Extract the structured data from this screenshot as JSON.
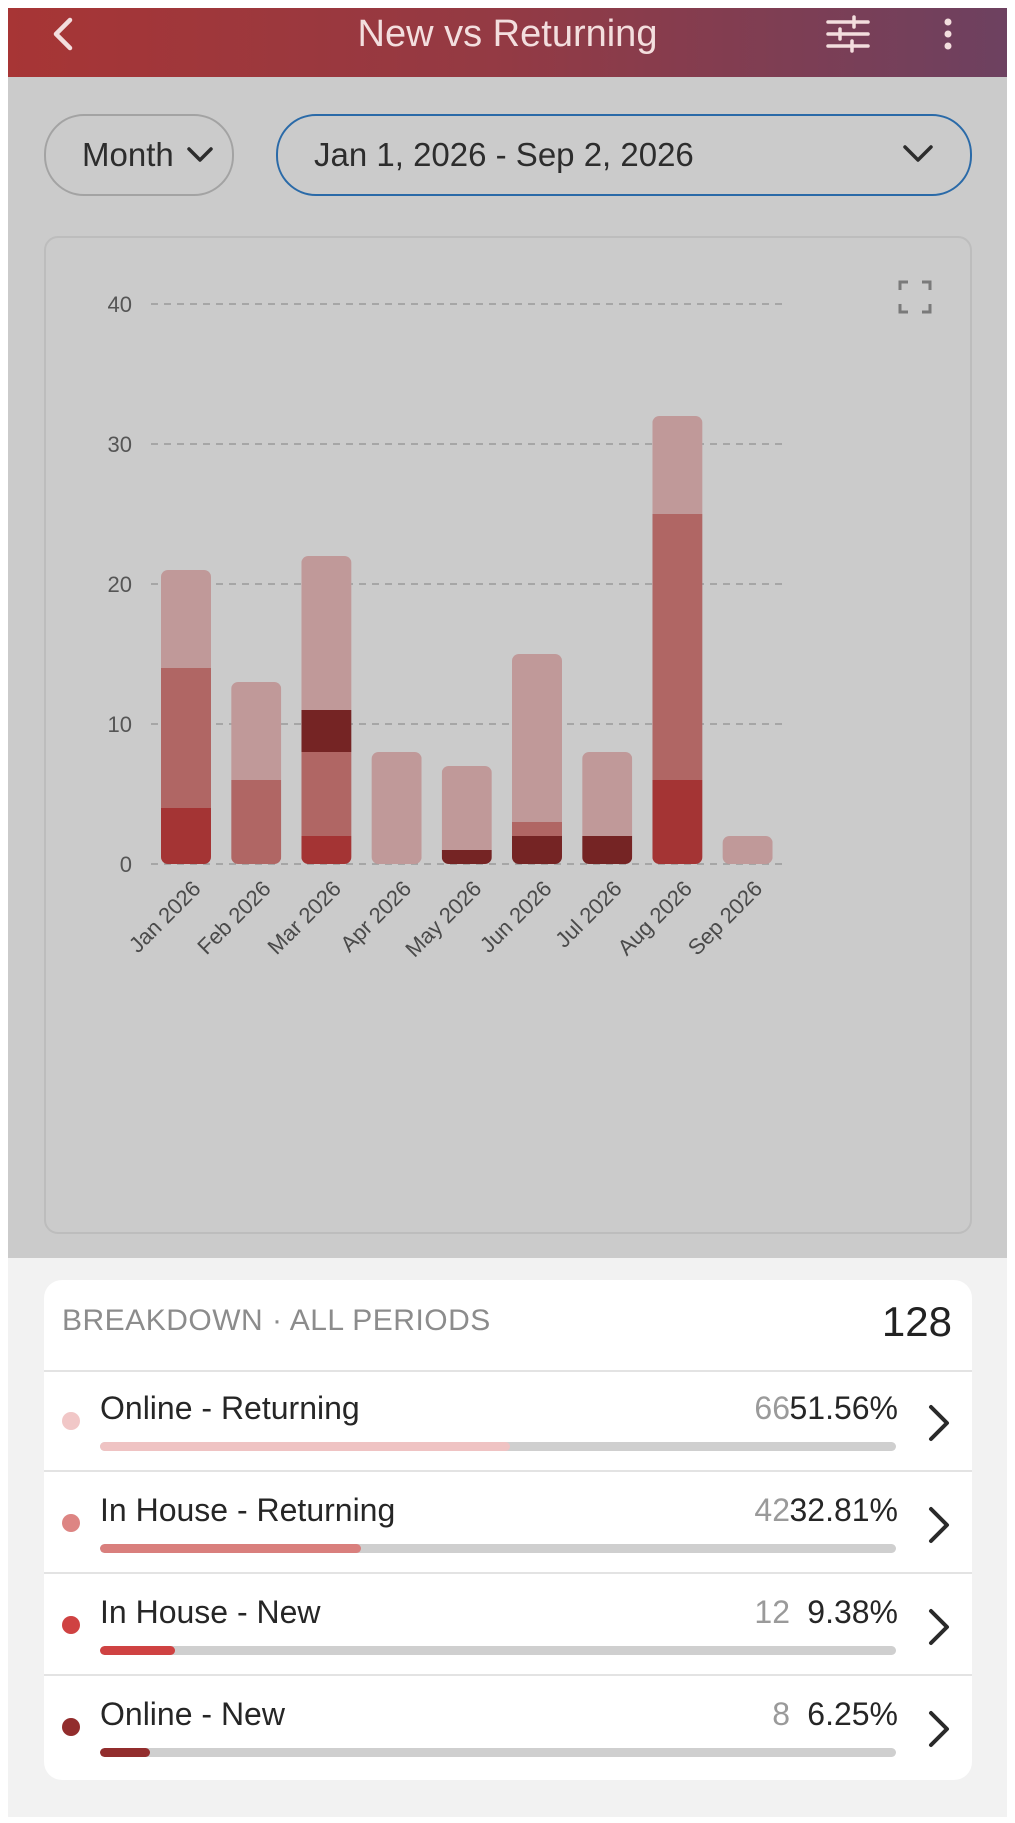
{
  "header": {
    "title": "New vs Returning",
    "back_icon": "chevron-left-icon",
    "filter_icon": "sliders-icon",
    "more_icon": "more-vertical-icon"
  },
  "filters": {
    "period": "Month",
    "date_range": "Jan 1, 2026 - Sep 2, 2026"
  },
  "colors": {
    "header_start": "#a73535",
    "header_end": "#6d4160",
    "online_returning": "#c09999",
    "in_house_returning": "#b06664",
    "in_house_new": "#a43434",
    "online_new": "#752424",
    "bar_online_returning": "#f1c7c7",
    "bar_in_house_returning": "#d97f7d",
    "bar_in_house_new": "#cf4242",
    "bar_online_new": "#922d2d"
  },
  "chart_data": {
    "type": "bar",
    "stacked": true,
    "categories": [
      "Jan 2026",
      "Feb 2026",
      "Mar 2026",
      "Apr 2026",
      "May 2026",
      "Jun 2026",
      "Jul 2026",
      "Aug 2026",
      "Sep 2026"
    ],
    "series": [
      {
        "name": "In House - New",
        "values": [
          4,
          0,
          2,
          0,
          0,
          0,
          0,
          6,
          0
        ]
      },
      {
        "name": "Online - New",
        "values": [
          0,
          0,
          0,
          0,
          1,
          2,
          2,
          0,
          0
        ]
      },
      {
        "name": "In House - Returning",
        "values": [
          10,
          6,
          6,
          0,
          0,
          1,
          0,
          19,
          0
        ]
      },
      {
        "name": "Online - New",
        "values": [
          0,
          0,
          3,
          0,
          0,
          0,
          0,
          0,
          0
        ]
      },
      {
        "name": "Online - Returning",
        "values": [
          7,
          7,
          11,
          8,
          6,
          12,
          6,
          7,
          2
        ]
      }
    ],
    "yticks": [
      0,
      10,
      20,
      30,
      40
    ],
    "ylim": [
      0,
      40
    ],
    "grid": true,
    "grid_style": "dashed"
  },
  "breakdown": {
    "title": "BREAKDOWN · ALL PERIODS",
    "total": "128",
    "rows": [
      {
        "label": "Online - Returning",
        "count": "66",
        "pct": "51.56%",
        "fraction": 0.5156,
        "dot_color": "#f1c7c7",
        "bar_color": "#efc3c3"
      },
      {
        "label": "In House - Returning",
        "count": "42",
        "pct": "32.81%",
        "fraction": 0.3281,
        "dot_color": "#dd8583",
        "bar_color": "#d97f7d"
      },
      {
        "label": "In House - New",
        "count": "12",
        "pct": "9.38%",
        "fraction": 0.0938,
        "dot_color": "#cf4242",
        "bar_color": "#cf4242"
      },
      {
        "label": "Online - New",
        "count": "8",
        "pct": "6.25%",
        "fraction": 0.0625,
        "dot_color": "#922d2d",
        "bar_color": "#922d2d"
      }
    ]
  }
}
